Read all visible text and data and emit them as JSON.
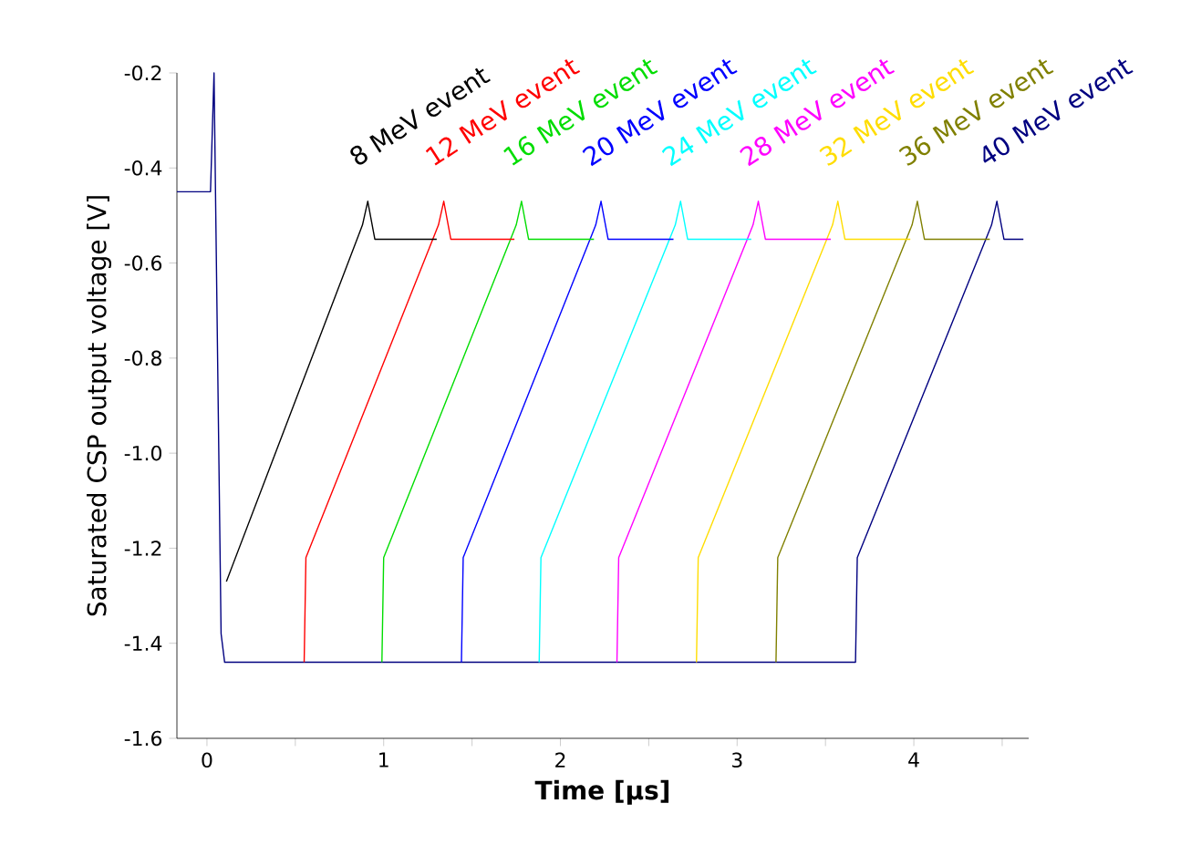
{
  "chart_data": {
    "type": "line",
    "xlabel": "Time [µs]",
    "ylabel": "Saturated CSP output voltage [V]",
    "xlim": [
      -0.17,
      4.65
    ],
    "ylim": [
      -1.6,
      -0.2
    ],
    "xticks": [
      0,
      {
        "value": 0.5,
        "label": null
      },
      1,
      {
        "value": 1.5,
        "label": null
      },
      2,
      {
        "value": 2.5,
        "label": null
      },
      3,
      {
        "value": 3.5,
        "label": null
      },
      4,
      {
        "value": 4.5,
        "label": null
      }
    ],
    "yticks": [
      -1.6,
      -1.4,
      -1.2,
      {
        "value": -1.0,
        "label": "-1.0"
      },
      -0.8,
      -0.6,
      -0.4,
      -0.2
    ],
    "line_style": "solid",
    "series": [
      {
        "name": "8 MeV event",
        "color": "#000000",
        "x": [
          0.11,
          0.88,
          0.91,
          0.95,
          1.3
        ],
        "values": [
          -1.27,
          -0.52,
          -0.47,
          -0.55,
          -0.55
        ]
      },
      {
        "name": "12 MeV event",
        "color": "#ff0000",
        "x": [
          0.55,
          0.56,
          1.31,
          1.34,
          1.38,
          1.74
        ],
        "values": [
          -1.44,
          -1.22,
          -0.52,
          -0.47,
          -0.55,
          -0.55
        ]
      },
      {
        "name": "16 MeV event",
        "color": "#00dd00",
        "x": [
          0.99,
          1.0,
          1.75,
          1.78,
          1.82,
          2.19
        ],
        "values": [
          -1.44,
          -1.22,
          -0.52,
          -0.47,
          -0.55,
          -0.55
        ]
      },
      {
        "name": "20 MeV event",
        "color": "#0000ff",
        "x": [
          1.44,
          1.45,
          2.2,
          2.23,
          2.27,
          2.64
        ],
        "values": [
          -1.44,
          -1.22,
          -0.52,
          -0.47,
          -0.55,
          -0.55
        ]
      },
      {
        "name": "24 MeV event",
        "color": "#00ffff",
        "x": [
          1.88,
          1.89,
          2.65,
          2.68,
          2.72,
          3.08
        ],
        "values": [
          -1.44,
          -1.22,
          -0.52,
          -0.47,
          -0.55,
          -0.55
        ]
      },
      {
        "name": "28 MeV event",
        "color": "#ff00ff",
        "x": [
          2.32,
          2.33,
          3.09,
          3.12,
          3.16,
          3.53
        ],
        "values": [
          -1.44,
          -1.22,
          -0.52,
          -0.47,
          -0.55,
          -0.55
        ]
      },
      {
        "name": "32 MeV event",
        "color": "#ffdd00",
        "x": [
          2.77,
          2.78,
          3.54,
          3.57,
          3.61,
          3.98
        ],
        "values": [
          -1.44,
          -1.22,
          -0.52,
          -0.47,
          -0.55,
          -0.55
        ]
      },
      {
        "name": "36 MeV event",
        "color": "#808000",
        "x": [
          3.22,
          3.23,
          3.99,
          4.02,
          4.06,
          4.43
        ],
        "values": [
          -1.44,
          -1.22,
          -0.52,
          -0.47,
          -0.55,
          -0.55
        ]
      },
      {
        "name": "40 MeV event",
        "color": "#000080",
        "x": [
          -0.17,
          0.02,
          0.04,
          0.05,
          0.08,
          0.1,
          3.67,
          3.68,
          4.44,
          4.47,
          4.51,
          4.62
        ],
        "values": [
          -0.45,
          -0.45,
          -0.2,
          -0.5,
          -1.38,
          -1.44,
          -1.44,
          -1.22,
          -0.52,
          -0.47,
          -0.55,
          -0.55
        ]
      }
    ]
  }
}
